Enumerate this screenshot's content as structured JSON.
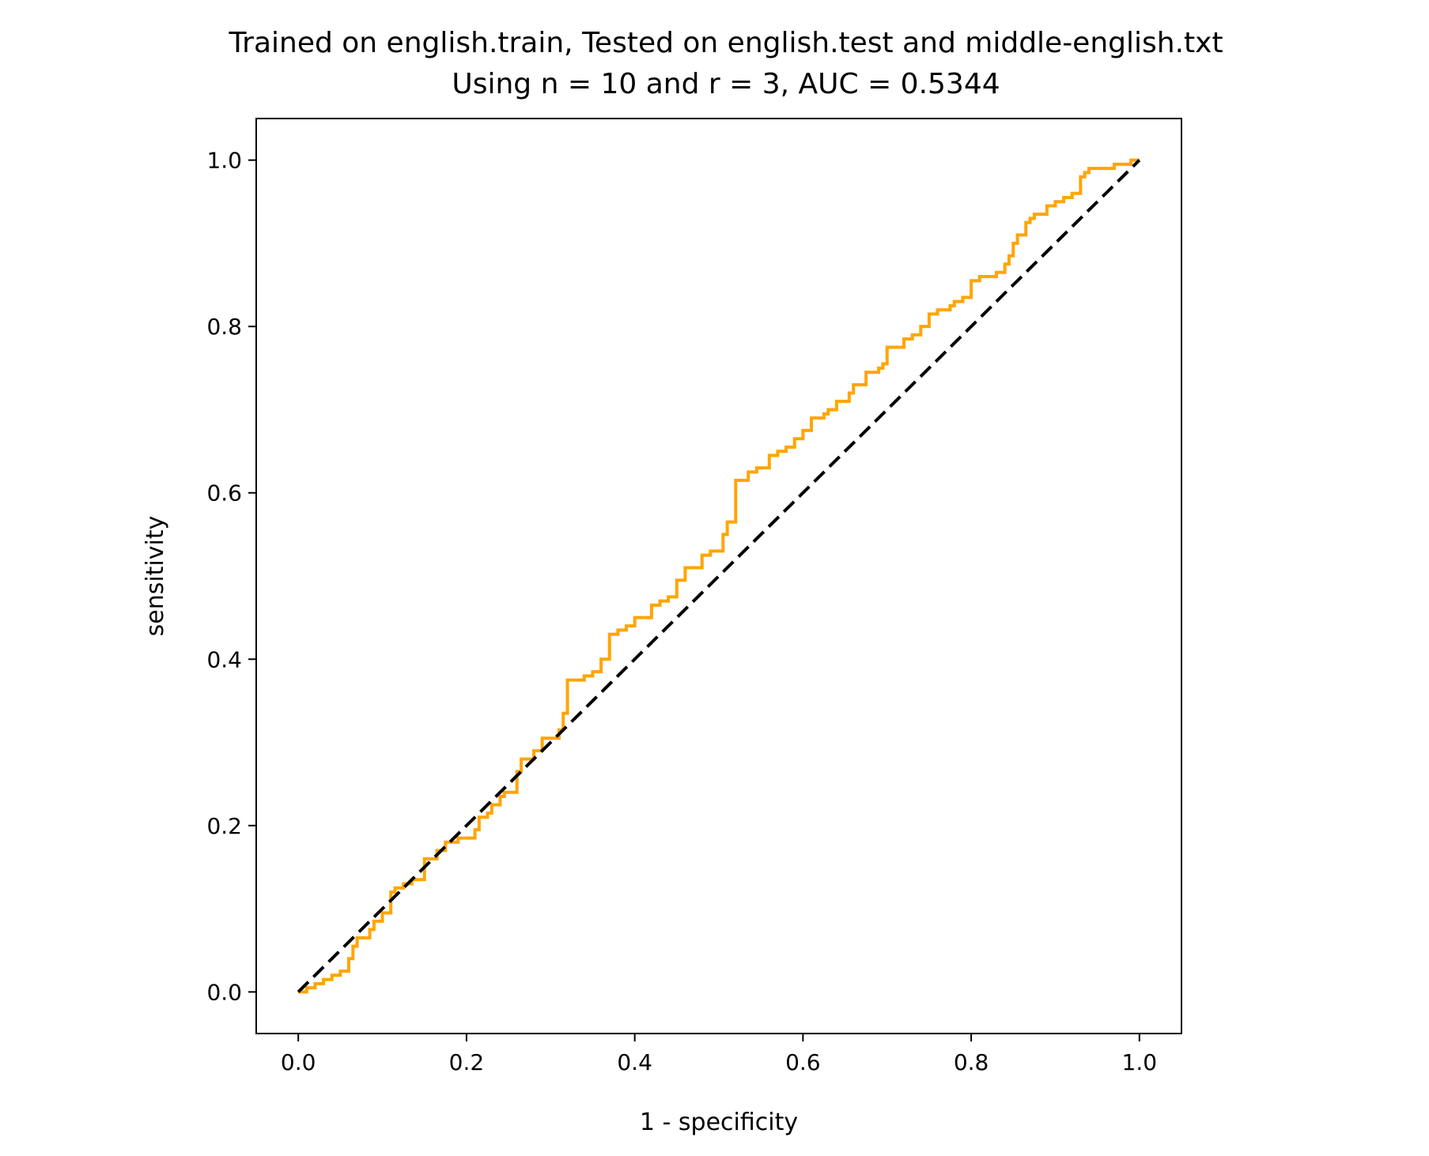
{
  "chart_data": {
    "type": "line",
    "title": "Trained on english.train, Tested on english.test and middle-english.txt",
    "subtitle": "Using n = 10 and r = 3, AUC = 0.5344",
    "xlabel": "1 - specificity",
    "ylabel": "sensitivity",
    "xlim": [
      -0.05,
      1.05
    ],
    "ylim": [
      -0.05,
      1.05
    ],
    "xticks": [
      "0.0",
      "0.2",
      "0.4",
      "0.6",
      "0.8",
      "1.0"
    ],
    "yticks": [
      "0.0",
      "0.2",
      "0.4",
      "0.6",
      "0.8",
      "1.0"
    ],
    "grid": false,
    "colors": {
      "roc": "#FFA500",
      "diagonal": "#000000"
    },
    "series": [
      {
        "style": "step",
        "color": "#FFA500",
        "x": [
          0.0,
          0.01,
          0.02,
          0.03,
          0.04,
          0.05,
          0.06,
          0.065,
          0.07,
          0.085,
          0.09,
          0.1,
          0.11,
          0.115,
          0.125,
          0.135,
          0.15,
          0.165,
          0.175,
          0.19,
          0.21,
          0.215,
          0.225,
          0.23,
          0.24,
          0.245,
          0.26,
          0.265,
          0.28,
          0.29,
          0.31,
          0.315,
          0.32,
          0.34,
          0.35,
          0.36,
          0.37,
          0.38,
          0.39,
          0.4,
          0.42,
          0.43,
          0.44,
          0.45,
          0.46,
          0.48,
          0.49,
          0.505,
          0.51,
          0.52,
          0.535,
          0.545,
          0.56,
          0.57,
          0.58,
          0.59,
          0.6,
          0.61,
          0.625,
          0.63,
          0.64,
          0.655,
          0.66,
          0.675,
          0.69,
          0.695,
          0.7,
          0.72,
          0.73,
          0.74,
          0.75,
          0.76,
          0.775,
          0.78,
          0.79,
          0.8,
          0.81,
          0.83,
          0.84,
          0.845,
          0.85,
          0.855,
          0.865,
          0.87,
          0.875,
          0.89,
          0.9,
          0.91,
          0.92,
          0.93,
          0.935,
          0.94,
          0.96,
          0.97,
          0.98,
          0.99,
          1.0
        ],
        "y": [
          0.0,
          0.005,
          0.01,
          0.015,
          0.02,
          0.025,
          0.04,
          0.055,
          0.065,
          0.075,
          0.085,
          0.095,
          0.12,
          0.125,
          0.13,
          0.135,
          0.16,
          0.17,
          0.18,
          0.185,
          0.195,
          0.21,
          0.215,
          0.225,
          0.235,
          0.24,
          0.265,
          0.28,
          0.29,
          0.305,
          0.315,
          0.335,
          0.375,
          0.38,
          0.385,
          0.4,
          0.43,
          0.435,
          0.44,
          0.45,
          0.465,
          0.47,
          0.475,
          0.495,
          0.51,
          0.525,
          0.53,
          0.55,
          0.565,
          0.615,
          0.625,
          0.63,
          0.645,
          0.65,
          0.655,
          0.665,
          0.675,
          0.69,
          0.695,
          0.7,
          0.71,
          0.72,
          0.73,
          0.745,
          0.75,
          0.755,
          0.775,
          0.785,
          0.79,
          0.8,
          0.815,
          0.82,
          0.825,
          0.83,
          0.835,
          0.855,
          0.86,
          0.865,
          0.875,
          0.885,
          0.9,
          0.91,
          0.925,
          0.93,
          0.935,
          0.945,
          0.95,
          0.955,
          0.96,
          0.98,
          0.985,
          0.99,
          0.99,
          0.995,
          0.995,
          1.0,
          1.0
        ]
      },
      {
        "style": "dashed",
        "color": "#000000",
        "x": [
          0.0,
          1.0
        ],
        "y": [
          0.0,
          1.0
        ]
      }
    ]
  }
}
